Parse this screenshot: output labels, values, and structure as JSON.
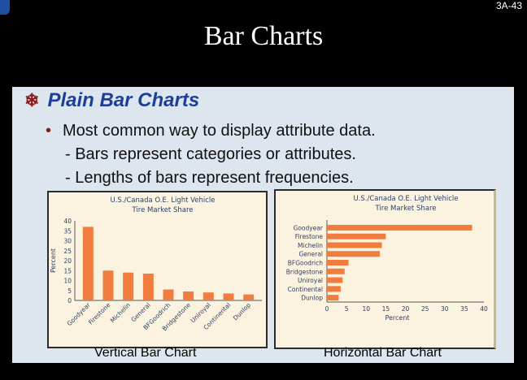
{
  "slide_number": "3A-43",
  "title": "Bar Charts",
  "subtitle": "Plain Bar Charts",
  "bullets": {
    "main": "Most common way to display attribute data.",
    "sub1": "- Bars represent categories or attributes.",
    "sub2": "- Lengths of bars represent frequencies."
  },
  "captions": {
    "vertical": "Vertical Bar Chart",
    "horizontal": "Horizontal Bar Chart"
  },
  "colors": {
    "bar": "#f07d3d",
    "title_text": "#ffffff",
    "subtitle_text": "#1d3f95"
  },
  "chart_data": [
    {
      "type": "bar",
      "orientation": "vertical",
      "title": "U.S./Canada O.E. Light Vehicle\nTire Market Share",
      "ylabel": "Percent",
      "xlabel": "",
      "ylim": [
        0,
        40
      ],
      "yticks": [
        0,
        5,
        10,
        15,
        20,
        25,
        30,
        35,
        40
      ],
      "categories": [
        "Goodyear",
        "Firestone",
        "Michelin",
        "General",
        "BFGoodrich",
        "Bridgestone",
        "Uniroyal",
        "Continental",
        "Dunlop"
      ],
      "values": [
        37,
        15,
        14,
        13.5,
        5.5,
        4.5,
        4,
        3.5,
        3
      ]
    },
    {
      "type": "bar",
      "orientation": "horizontal",
      "title": "U.S./Canada O.E. Light Vehicle\nTire Market Share",
      "xlabel": "Percent",
      "ylabel": "",
      "xlim": [
        0,
        40
      ],
      "xticks": [
        0,
        5,
        10,
        15,
        20,
        25,
        30,
        35,
        40
      ],
      "categories": [
        "Goodyear",
        "Firestone",
        "Michelin",
        "General",
        "BFGoodrich",
        "Bridgestone",
        "Uniroyal",
        "Continental",
        "Dunlop"
      ],
      "values": [
        37,
        15,
        14,
        13.5,
        5.5,
        4.5,
        4,
        3.5,
        3
      ]
    }
  ]
}
